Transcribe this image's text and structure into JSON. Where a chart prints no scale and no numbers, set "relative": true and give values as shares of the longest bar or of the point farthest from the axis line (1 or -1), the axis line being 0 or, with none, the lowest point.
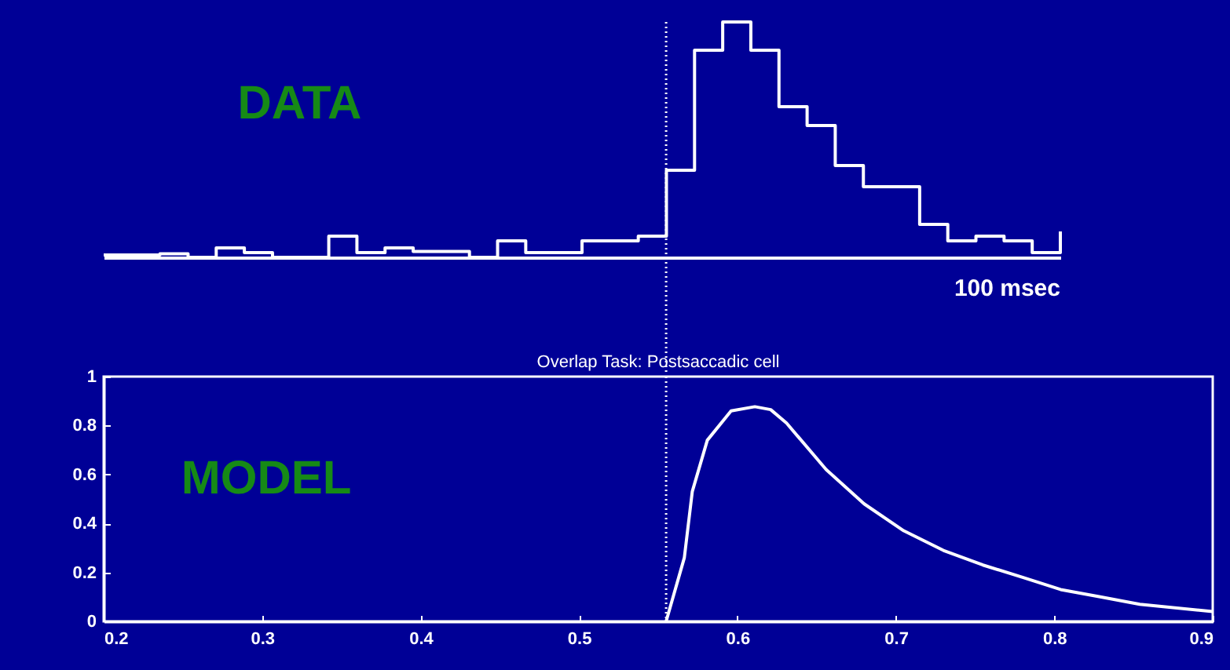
{
  "chart_data": [
    {
      "type": "step",
      "relative": true,
      "color": "#ffffff",
      "categories": [
        null,
        null,
        null,
        null,
        null,
        null,
        null,
        null,
        null,
        null,
        null,
        null,
        null,
        null,
        null,
        null,
        null,
        null,
        null,
        null,
        null,
        null,
        null,
        null,
        null,
        null,
        null,
        null,
        null,
        null,
        null,
        null,
        null,
        null,
        null
      ],
      "values": [
        0.01,
        0.01,
        0.015,
        0,
        0.04,
        0.02,
        0,
        0,
        0.09,
        0.02,
        0.04,
        0.025,
        0.025,
        0,
        0.07,
        0.02,
        0.02,
        0.07,
        0.07,
        0.09,
        0.37,
        0.88,
        1,
        0.88,
        0.64,
        0.56,
        0.39,
        0.3,
        0.3,
        0.14,
        0.07,
        0.09,
        0.07,
        0.02,
        0.11
      ],
      "annotations": [
        "DATA",
        "100 msec"
      ],
      "grid": false
    },
    {
      "type": "line",
      "title": "Overlap Task:  Postsaccadic cell",
      "color": "#ffffff",
      "marker": "none",
      "line_style": "solid",
      "x": [
        0.555,
        0.5665,
        0.5715,
        0.581,
        0.596,
        0.611,
        0.621,
        0.631,
        0.656,
        0.68,
        0.705,
        0.73,
        0.755,
        0.78,
        0.804,
        0.829,
        0.854,
        0.9
      ],
      "values": [
        0,
        0.26,
        0.53,
        0.74,
        0.86,
        0.877,
        0.865,
        0.81,
        0.62,
        0.48,
        0.37,
        0.29,
        0.23,
        0.18,
        0.13,
        0.1,
        0.07,
        0.04
      ],
      "xlim": [
        0.2,
        0.9
      ],
      "xticks": [
        0.2,
        0.3,
        0.4,
        0.5,
        0.6,
        0.7,
        0.8,
        0.9
      ],
      "ylim": [
        0,
        1
      ],
      "yticks": [
        0,
        0.2,
        0.4,
        0.6,
        0.8,
        1
      ],
      "ref_lines": [
        {
          "axis": "x",
          "value": 0.555,
          "color": "#ffffff",
          "line_style": "dotted"
        }
      ],
      "annotations": [
        "MODEL"
      ],
      "grid": false
    }
  ]
}
